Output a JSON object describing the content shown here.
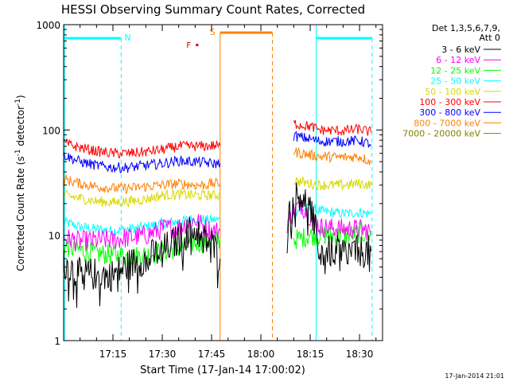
{
  "chart_data": {
    "type": "line",
    "title": "HESSI Observing Summary Count Rates, Corrected",
    "xlabel": "Start Time (17-Jan-14 17:00:02)",
    "ylabel_main": "Corrected Count Rate (s",
    "ylabel_sup1": "-1",
    "ylabel_mid": " detector",
    "ylabel_sup2": "-1",
    "ylabel_end": ")",
    "y_scale": "log",
    "ylim": [
      1,
      1000
    ],
    "xlim_minutes": [
      0,
      97
    ],
    "x_ticks": [
      {
        "m": 15,
        "label": "17:15"
      },
      {
        "m": 30,
        "label": "17:30"
      },
      {
        "m": 45,
        "label": "17:45"
      },
      {
        "m": 60,
        "label": "18:00"
      },
      {
        "m": 75,
        "label": "18:15"
      },
      {
        "m": 90,
        "label": "18:30"
      }
    ],
    "y_ticks": [
      {
        "v": 1,
        "label": "1"
      },
      {
        "v": 10,
        "label": "10"
      },
      {
        "v": 100,
        "label": "100"
      },
      {
        "v": 1000,
        "label": "1000"
      }
    ],
    "legend_title_1": "Det 1,3,5,6,7,9,",
    "legend_title_2": "Att 0",
    "legend_position": "right",
    "series": [
      {
        "name": "3 - 6 keV",
        "color": "#000000",
        "x": [
          0,
          5,
          10,
          15,
          20,
          25,
          30,
          35,
          40,
          43,
          45,
          47.6,
          65,
          68,
          70,
          72,
          75,
          78,
          85,
          90,
          93.5
        ],
        "y": [
          5.5,
          4.2,
          4.3,
          4.2,
          5.3,
          6.0,
          7.2,
          9.0,
          12.0,
          9.0,
          8.5,
          6.0,
          null,
          13.0,
          22.0,
          25.0,
          18.0,
          7.0,
          7.0,
          7.0,
          7.0
        ]
      },
      {
        "name": "6 - 12 keV",
        "color": "#ff00ff",
        "x": [
          0,
          5,
          10,
          15,
          20,
          25,
          30,
          35,
          40,
          43,
          45,
          47.6,
          65,
          68,
          70,
          72,
          75,
          78,
          85,
          90,
          93.5
        ],
        "y": [
          9.5,
          8.8,
          9.0,
          9.0,
          9.5,
          10.0,
          11.5,
          12.0,
          14.0,
          12.0,
          11.0,
          11.0,
          null,
          13.0,
          17.0,
          20.0,
          15.0,
          12.0,
          11.5,
          11.5,
          11.0
        ]
      },
      {
        "name": "12 - 25 keV",
        "color": "#00ff00",
        "x": [
          0,
          5,
          10,
          15,
          20,
          25,
          30,
          35,
          40,
          43,
          45,
          47.6,
          65,
          70,
          75,
          78,
          85,
          90,
          93.5
        ],
        "y": [
          7.8,
          7.2,
          6.7,
          6.5,
          6.3,
          6.5,
          7.0,
          7.5,
          8.5,
          8.5,
          9.0,
          9.0,
          null,
          9.0,
          10.0,
          10.0,
          10.0,
          10.5,
          10.0
        ]
      },
      {
        "name": "25 - 50 keV",
        "color": "#00ffff",
        "x": [
          0,
          5,
          10,
          15,
          20,
          25,
          30,
          35,
          40,
          43,
          45,
          47.6,
          65,
          70,
          75,
          78,
          85,
          90,
          93.5
        ],
        "y": [
          13.5,
          12.0,
          11.5,
          11.0,
          11.5,
          12.0,
          13.0,
          13.5,
          14.5,
          14.0,
          14.0,
          14.0,
          null,
          17.0,
          18.0,
          17.0,
          16.0,
          16.5,
          16.0
        ]
      },
      {
        "name": "50 - 100 keV",
        "color": "#d8d800",
        "x": [
          0,
          5,
          10,
          15,
          20,
          25,
          30,
          35,
          40,
          43,
          45,
          47.6,
          65,
          70,
          75,
          78,
          85,
          90,
          93.5
        ],
        "y": [
          24.0,
          22.5,
          21.0,
          20.5,
          21.0,
          22.0,
          24.0,
          24.5,
          24.0,
          24.0,
          24.0,
          24.0,
          null,
          33.0,
          31.0,
          30.0,
          30.0,
          31.0,
          30.0
        ]
      },
      {
        "name": "100 - 300 keV",
        "color": "#ff0000",
        "x": [
          0,
          5,
          10,
          15,
          20,
          25,
          30,
          35,
          40,
          43,
          45,
          47.6,
          65,
          70,
          75,
          78,
          85,
          90,
          93.5
        ],
        "y": [
          75.0,
          68.0,
          63.0,
          60.0,
          60.0,
          62.0,
          65.0,
          70.0,
          70.0,
          70.0,
          71.0,
          71.0,
          null,
          115.0,
          108.0,
          100.0,
          98.0,
          102.0,
          95.0
        ]
      },
      {
        "name": "300 - 800 keV",
        "color": "#0000ff",
        "x": [
          0,
          5,
          10,
          15,
          20,
          25,
          30,
          35,
          40,
          43,
          45,
          47.6,
          65,
          70,
          75,
          78,
          85,
          90,
          93.5
        ],
        "y": [
          58.0,
          50.0,
          46.0,
          44.0,
          44.0,
          46.0,
          48.0,
          51.0,
          50.0,
          49.0,
          48.0,
          48.0,
          null,
          88.0,
          82.0,
          78.0,
          78.0,
          79.0,
          73.0
        ]
      },
      {
        "name": "800 - 7000 keV",
        "color": "#ff8000",
        "x": [
          0,
          5,
          10,
          15,
          20,
          25,
          30,
          35,
          40,
          43,
          45,
          47.6,
          65,
          70,
          75,
          78,
          85,
          90,
          93.5
        ],
        "y": [
          34.0,
          31.0,
          29.0,
          28.0,
          28.0,
          29.0,
          30.0,
          31.0,
          30.0,
          30.0,
          31.0,
          31.0,
          null,
          62.0,
          58.0,
          56.0,
          55.0,
          56.0,
          50.0
        ]
      },
      {
        "name": "7000 - 20000 keV",
        "color": "#808000",
        "x": [],
        "y": []
      }
    ],
    "annotations": [
      {
        "label": "N",
        "color": "#00ffff",
        "m": 17.5
      },
      {
        "label": "S",
        "color": "#ff8000",
        "m": 47.6
      },
      {
        "label": "F",
        "color": "#cc0000",
        "m": 40.0
      }
    ],
    "footer_date": "17-Jan-2014 21:01"
  }
}
